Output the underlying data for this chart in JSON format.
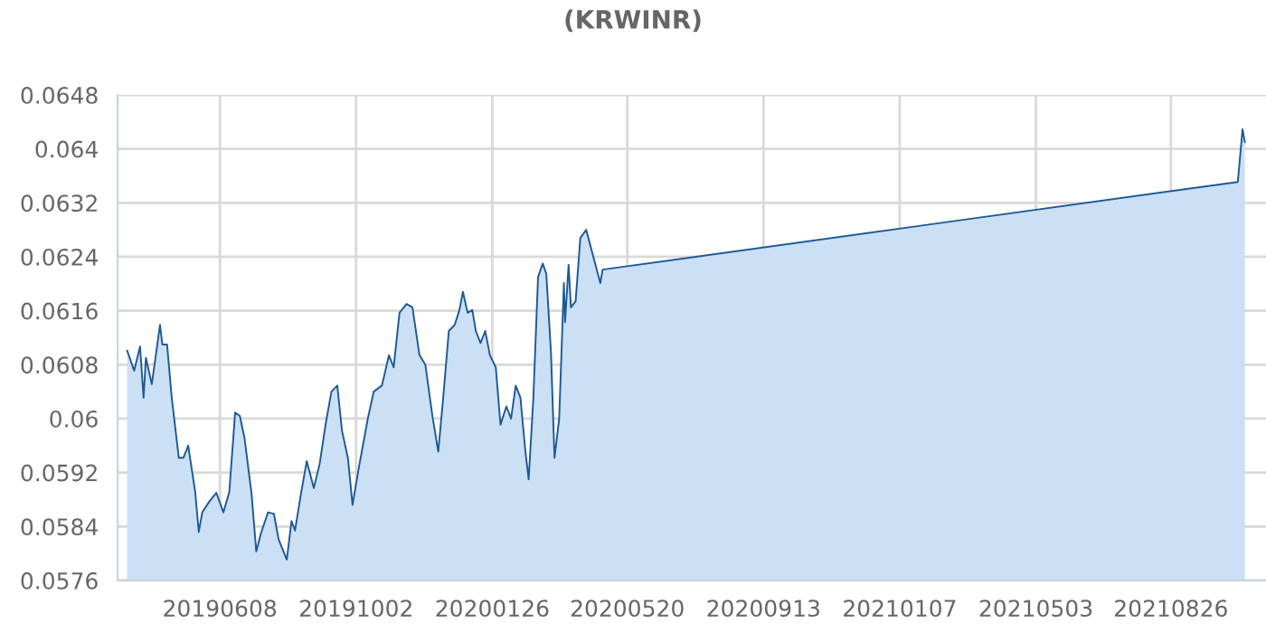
{
  "chart_data": {
    "type": "area",
    "title": "(KRWINR)",
    "x": [
      "2019-03-21",
      "2019-03-27",
      "2019-04-01",
      "2019-04-04",
      "2019-04-06",
      "2019-04-11",
      "2019-04-18",
      "2019-04-20",
      "2019-04-24",
      "2019-04-28",
      "2019-05-04",
      "2019-05-08",
      "2019-05-12",
      "2019-05-18",
      "2019-05-21",
      "2019-05-24",
      "2019-05-30",
      "2019-06-05",
      "2019-06-11",
      "2019-06-16",
      "2019-06-21",
      "2019-06-25",
      "2019-06-29",
      "2019-07-05",
      "2019-07-09",
      "2019-07-13",
      "2019-07-19",
      "2019-07-24",
      "2019-07-28",
      "2019-08-04",
      "2019-08-08",
      "2019-08-11",
      "2019-08-16",
      "2019-08-21",
      "2019-08-27",
      "2019-09-01",
      "2019-09-06",
      "2019-09-11",
      "2019-09-16",
      "2019-09-20",
      "2019-09-25",
      "2019-09-29",
      "2019-10-04",
      "2019-10-12",
      "2019-10-17",
      "2019-10-24",
      "2019-10-30",
      "2019-11-03",
      "2019-11-08",
      "2019-11-14",
      "2019-11-19",
      "2019-11-25",
      "2019-11-30",
      "2019-12-06",
      "2019-12-11",
      "2019-12-15",
      "2019-12-20",
      "2019-12-25",
      "2019-12-29",
      "2020-01-01",
      "2020-01-05",
      "2020-01-09",
      "2020-01-12",
      "2020-01-16",
      "2020-01-20",
      "2020-01-24",
      "2020-01-29",
      "2020-02-02",
      "2020-02-07",
      "2020-02-11",
      "2020-02-15",
      "2020-02-19",
      "2020-02-23",
      "2020-02-26",
      "2020-03-01",
      "2020-03-05",
      "2020-03-09",
      "2020-03-12",
      "2020-03-16",
      "2020-03-19",
      "2020-03-23",
      "2020-03-27",
      "2020-03-28",
      "2020-03-31",
      "2020-04-02",
      "2020-04-06",
      "2020-04-10",
      "2020-04-15",
      "2020-04-27",
      "2020-04-29",
      "2021-10-22",
      "2021-10-26",
      "2021-10-28"
    ],
    "series": [
      {
        "color": "#1f5a96",
        "values": [
          0.06101,
          0.06071,
          0.06107,
          0.06031,
          0.0609,
          0.06051,
          0.06139,
          0.0611,
          0.0611,
          0.06031,
          0.05942,
          0.05942,
          0.0596,
          0.05891,
          0.05832,
          0.05861,
          0.05877,
          0.0589,
          0.05861,
          0.05891,
          0.06009,
          0.06004,
          0.05971,
          0.05888,
          0.05803,
          0.0583,
          0.05861,
          0.05859,
          0.05821,
          0.05791,
          0.05848,
          0.05834,
          0.05888,
          0.05937,
          0.05897,
          0.05933,
          0.05991,
          0.0604,
          0.06049,
          0.05982,
          0.05942,
          0.05872,
          0.05924,
          0.06,
          0.0604,
          0.06049,
          0.06094,
          0.06076,
          0.06157,
          0.0617,
          0.06165,
          0.06094,
          0.0608,
          0.06004,
          0.05951,
          0.06027,
          0.0613,
          0.06139,
          0.06161,
          0.06188,
          0.06157,
          0.06161,
          0.0613,
          0.06112,
          0.0613,
          0.06094,
          0.06076,
          0.05991,
          0.06018,
          0.06,
          0.06049,
          0.06031,
          0.05955,
          0.0591,
          0.06031,
          0.0621,
          0.0623,
          0.06215,
          0.06098,
          0.05942,
          0.06,
          0.06201,
          0.06143,
          0.06228,
          0.06165,
          0.06174,
          0.06268,
          0.0628,
          0.06201,
          0.06221,
          0.06351,
          0.06429,
          0.0641
        ]
      }
    ],
    "xlim": [
      "2019-03-13",
      "2021-11-15"
    ],
    "xticks": [
      {
        "value": "2019-06-08",
        "label": "20190608"
      },
      {
        "value": "2019-10-02",
        "label": "20191002"
      },
      {
        "value": "2020-01-26",
        "label": "20200126"
      },
      {
        "value": "2020-05-20",
        "label": "20200520"
      },
      {
        "value": "2020-09-13",
        "label": "20200913"
      },
      {
        "value": "2021-01-07",
        "label": "20210107"
      },
      {
        "value": "2021-05-03",
        "label": "20210503"
      },
      {
        "value": "2021-08-26",
        "label": "20210826"
      }
    ],
    "ylim": [
      0.0576,
      0.0648
    ],
    "yticks": [
      0.0576,
      0.0584,
      0.0592,
      0.06,
      0.0608,
      0.0616,
      0.0624,
      0.0632,
      0.064,
      0.0648
    ],
    "grid": true
  }
}
